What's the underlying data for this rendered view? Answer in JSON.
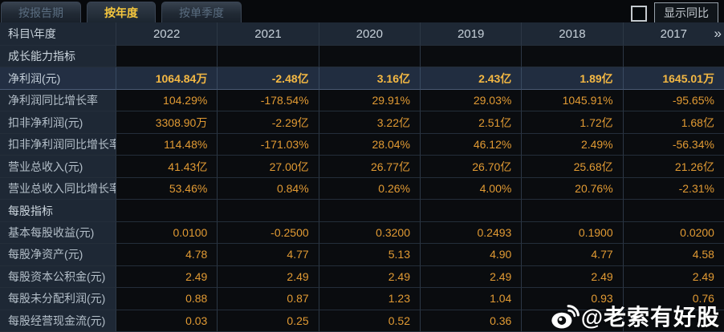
{
  "tabs": [
    {
      "label": "按报告期",
      "active": false
    },
    {
      "label": "按年度",
      "active": true
    },
    {
      "label": "按单季度",
      "active": false
    }
  ],
  "controls": {
    "yoy_label": "显示同比",
    "yoy_checkbox_checked": false
  },
  "table": {
    "corner_header": "科目\\年度",
    "year_headers": [
      "2022",
      "2021",
      "2020",
      "2019",
      "2018",
      "2017"
    ],
    "more_years_icon": "»",
    "rows": [
      {
        "type": "section",
        "highlight": false,
        "label": "成长能力指标",
        "values": [
          "",
          "",
          "",
          "",
          "",
          ""
        ]
      },
      {
        "type": "data",
        "highlight": true,
        "label": "净利润(元)",
        "values": [
          "1064.84万",
          "-2.48亿",
          "3.16亿",
          "2.43亿",
          "1.89亿",
          "1645.01万"
        ]
      },
      {
        "type": "data",
        "highlight": false,
        "label": "净利润同比增长率",
        "values": [
          "104.29%",
          "-178.54%",
          "29.91%",
          "29.03%",
          "1045.91%",
          "-95.65%"
        ]
      },
      {
        "type": "data",
        "highlight": false,
        "label": "扣非净利润(元)",
        "values": [
          "3308.90万",
          "-2.29亿",
          "3.22亿",
          "2.51亿",
          "1.72亿",
          "1.68亿"
        ]
      },
      {
        "type": "data",
        "highlight": false,
        "label": "扣非净利润同比增长率",
        "values": [
          "114.48%",
          "-171.03%",
          "28.04%",
          "46.12%",
          "2.49%",
          "-56.34%"
        ]
      },
      {
        "type": "data",
        "highlight": false,
        "label": "营业总收入(元)",
        "values": [
          "41.43亿",
          "27.00亿",
          "26.77亿",
          "26.70亿",
          "25.68亿",
          "21.26亿"
        ]
      },
      {
        "type": "data",
        "highlight": false,
        "label": "营业总收入同比增长率",
        "values": [
          "53.46%",
          "0.84%",
          "0.26%",
          "4.00%",
          "20.76%",
          "-2.31%"
        ]
      },
      {
        "type": "section",
        "highlight": false,
        "label": "每股指标",
        "values": [
          "",
          "",
          "",
          "",
          "",
          ""
        ]
      },
      {
        "type": "data",
        "highlight": false,
        "label": "基本每股收益(元)",
        "values": [
          "0.0100",
          "-0.2500",
          "0.3200",
          "0.2493",
          "0.1900",
          "0.0200"
        ]
      },
      {
        "type": "data",
        "highlight": false,
        "label": "每股净资产(元)",
        "values": [
          "4.78",
          "4.77",
          "5.13",
          "4.90",
          "4.77",
          "4.58"
        ]
      },
      {
        "type": "data",
        "highlight": false,
        "label": "每股资本公积金(元)",
        "values": [
          "2.49",
          "2.49",
          "2.49",
          "2.49",
          "2.49",
          "2.49"
        ]
      },
      {
        "type": "data",
        "highlight": false,
        "label": "每股未分配利润(元)",
        "values": [
          "0.88",
          "0.87",
          "1.23",
          "1.04",
          "0.93",
          "0.76"
        ]
      },
      {
        "type": "data",
        "highlight": false,
        "label": "每股经营现金流(元)",
        "values": [
          "0.03",
          "0.25",
          "0.52",
          "0.36",
          "",
          ""
        ]
      }
    ]
  },
  "watermark": {
    "text": "@老索有好股"
  },
  "colors": {
    "accent_gold": "#f6c73e",
    "value_orange": "#e19a33",
    "highlight_value_gold": "#f4b843",
    "highlight_row_bg": "#212d40",
    "panel_slate": "#1e2835",
    "data_cell_bg": "#0a0c0f",
    "watermark_white": "#ffffff"
  }
}
